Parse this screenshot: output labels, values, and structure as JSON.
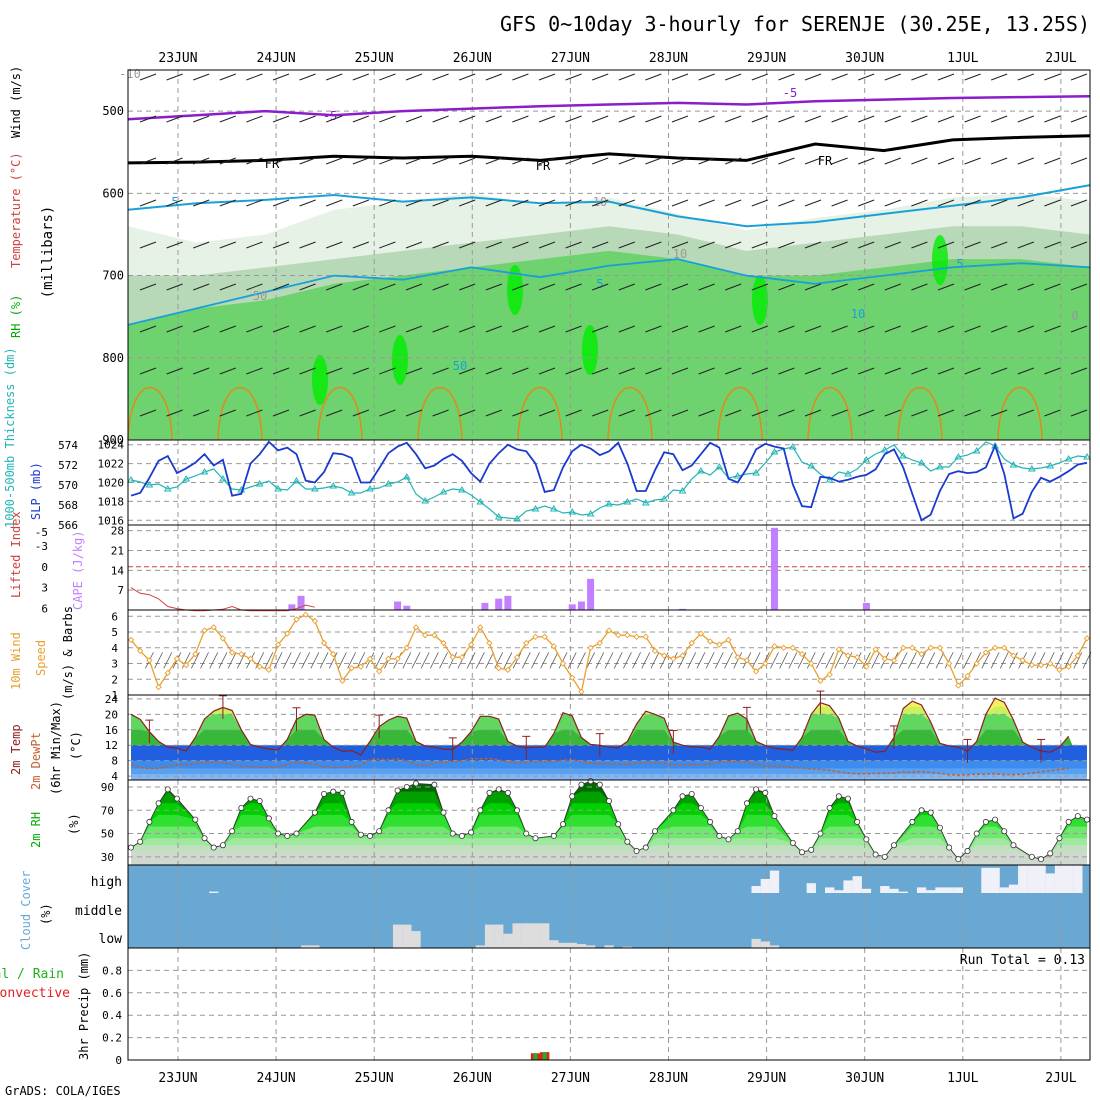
{
  "title": "GFS 0~10day 3-hourly for SERENJE (30.25E, 13.25S)",
  "footer": "GrADS: COLA/IGES",
  "dates": [
    "23JUN",
    "24JUN",
    "25JUN",
    "26JUN",
    "27JUN",
    "28JUN",
    "29JUN",
    "30JUN",
    "1JUL",
    "2JUL"
  ],
  "colors": {
    "grid": "#999999",
    "axis": "#000000",
    "rh_light": "#e6f2e6",
    "rh_mid": "#b8d9b8",
    "rh_dark": "#6ed36e",
    "rh_bright": "#00ee00",
    "purple": "#8a1ec8",
    "cyan": "#1aa0d8",
    "orange": "#e08a1a",
    "thick_cyan": "#23b5b5",
    "slp_blue": "#1a3ad0",
    "cape": "#c080ff",
    "li": "#d04040",
    "wind": "#e8a030",
    "cloud_bg": "#6aa8d4",
    "cloud_gray": "#dddddd",
    "precip_red": "#e02020",
    "precip_green": "#20b020"
  },
  "chart_data": [
    {
      "type": "area",
      "name": "upper-air",
      "ylabel_parts": [
        "RH (%)",
        "Temperature (°C)",
        "Wind (m/s)"
      ],
      "axis_label": "(millibars)",
      "y_ticks": [
        "500",
        "600",
        "700",
        "800",
        "900"
      ],
      "ylim": [
        450,
        900
      ],
      "contour_labels": [
        "-10",
        "-5",
        "-5",
        "FR",
        "FR",
        "FR",
        "5",
        "5",
        "5",
        "10",
        "10",
        "10",
        "50",
        "50",
        "0"
      ],
      "isotherm_minus5": [
        510,
        505,
        500,
        505,
        500,
        497,
        494,
        492,
        490,
        492,
        488,
        486,
        484,
        483,
        482
      ],
      "isotherm_zero": [
        563,
        562,
        560,
        555,
        557,
        555,
        560,
        552,
        557,
        560,
        540,
        548,
        535,
        532,
        530
      ],
      "isotherm_5": [
        620,
        612,
        608,
        602,
        610,
        605,
        612,
        610,
        628,
        640,
        635,
        625,
        615,
        605,
        590
      ],
      "isotherm_10": [
        760,
        740,
        720,
        700,
        705,
        690,
        702,
        688,
        680,
        700,
        710,
        700,
        690,
        685,
        690
      ]
    },
    {
      "type": "line",
      "name": "thickness-slp",
      "ylabel_left": "1000-500mb Thickness (dm)",
      "ylabel_right": "SLP (mb)",
      "thickness_ticks": [
        "574",
        "572",
        "570",
        "568",
        "566"
      ],
      "slp_ticks": [
        "1024",
        "1022",
        "1020",
        "1018",
        "1016"
      ],
      "thickness_range": [
        566,
        574.5
      ],
      "slp_range": [
        1015.5,
        1024.5
      ],
      "slp": [
        1018.6,
        1018.9,
        1020.5,
        1022.3,
        1022.8,
        1021.0,
        1021.5,
        1022.1,
        1023.0,
        1021.8,
        1022.4,
        1018.6,
        1018.8,
        1022.0,
        1023.0,
        1024.3,
        1023.4,
        1023.7,
        1023.0,
        1020.2,
        1020.0,
        1021.1,
        1023.1,
        1023.0,
        1022.6,
        1020.0,
        1020.0,
        1021.5,
        1023.1,
        1023.8,
        1024.2,
        1023.0,
        1021.5,
        1021.8,
        1022.5,
        1023.0,
        1022.3,
        1021.0,
        1020.1,
        1022.0,
        1023.1,
        1024.0,
        1023.5,
        1023.3,
        1022.0,
        1019.0,
        1019.2,
        1021.6,
        1023.3,
        1024.0,
        1023.6,
        1022.9,
        1023.3,
        1024.2,
        1022.0,
        1019.1,
        1019.1,
        1021.3,
        1023.2,
        1023.0,
        1021.3,
        1021.8,
        1023.0,
        1024.2,
        1023.7,
        1020.4,
        1020.0,
        1021.5,
        1023.5,
        1024.1,
        1023.8,
        1023.6,
        1019.8,
        1017.5,
        1017.4,
        1020.6,
        1020.5,
        1020.1,
        1020.3,
        1020.6,
        1020.8,
        1021.4,
        1023.0,
        1023.5,
        1021.6,
        1018.8,
        1016.0,
        1016.6,
        1019.1,
        1020.9,
        1021.2,
        1021.0,
        1021.1,
        1021.6,
        1023.9,
        1020.9,
        1016.2,
        1016.7,
        1019.0,
        1020.5,
        1020.1,
        1020.6,
        1021.2,
        1021.9,
        1022.1
      ],
      "thickness": [
        570.5,
        570.3,
        570.0,
        570.1,
        569.6,
        569.8,
        570.6,
        570.9,
        571.3,
        571.6,
        570.6,
        569.6,
        569.5,
        569.8,
        570.1,
        570.4,
        569.6,
        569.5,
        570.4,
        569.6,
        569.6,
        569.7,
        569.9,
        569.7,
        569.2,
        569.2,
        569.6,
        569.7,
        570.1,
        570.3,
        570.8,
        569.1,
        568.4,
        568.8,
        569.3,
        569.6,
        569.5,
        569.0,
        568.3,
        567.6,
        566.8,
        566.7,
        566.6,
        567.4,
        567.6,
        567.9,
        567.6,
        567.2,
        567.3,
        567.0,
        567.1,
        567.7,
        568.1,
        568.0,
        568.3,
        568.6,
        568.2,
        568.5,
        568.6,
        569.5,
        569.4,
        570.6,
        571.4,
        571.0,
        571.8,
        570.7,
        570.9,
        571.1,
        571.2,
        572.2,
        573.3,
        573.6,
        573.8,
        572.3,
        571.9,
        571.1,
        570.5,
        571.3,
        571.1,
        571.6,
        572.5,
        573.1,
        573.5,
        574.0,
        572.9,
        572.5,
        572.2,
        571.4,
        571.8,
        571.8,
        572.8,
        573.0,
        573.4,
        574.3,
        573.9,
        572.6,
        572.0,
        571.7,
        571.6,
        571.7,
        571.9,
        572.2,
        572.6,
        572.9,
        572.8
      ],
      "thickness_marker": "triangle",
      "slp_marker": "none"
    },
    {
      "type": "bar",
      "name": "cape-li",
      "ylabel_left": "Lifted Index",
      "ylabel_right": "CAPE (J/kg)",
      "li_ticks": [
        "-5",
        "-3",
        "0",
        "3",
        "6"
      ],
      "cape_ticks": [
        "28",
        "21",
        "14",
        "7"
      ],
      "cape_range": [
        0,
        30
      ],
      "li_range": [
        -6,
        6.2
      ],
      "li_reference_line": 0,
      "cape_bars": [
        {
          "x": 17.5,
          "v": 2
        },
        {
          "x": 18.5,
          "v": 5
        },
        {
          "x": 29,
          "v": 3
        },
        {
          "x": 30,
          "v": 1.5
        },
        {
          "x": 38.5,
          "v": 2.5
        },
        {
          "x": 40,
          "v": 4
        },
        {
          "x": 41,
          "v": 5
        },
        {
          "x": 48,
          "v": 2
        },
        {
          "x": 49,
          "v": 3
        },
        {
          "x": 50,
          "v": 11
        },
        {
          "x": 60,
          "v": 0.4
        },
        {
          "x": 70,
          "v": 29
        },
        {
          "x": 80,
          "v": 2.5
        }
      ],
      "li": [
        3.0,
        3.8,
        4.0,
        4.6,
        5.7,
        6.0,
        6.2,
        6.3,
        6.3,
        6.2,
        6.1,
        5.7,
        6.2,
        6.3,
        6.3,
        6.3,
        6.3,
        6.3,
        6.0,
        5.5,
        5.8
      ],
      "li_start": 0
    },
    {
      "type": "line",
      "name": "wind10m",
      "ylabel_parts": [
        "10m Wind",
        "Speed",
        "(m/s) & Barbs"
      ],
      "y_ticks": [
        "1",
        "2",
        "3",
        "4",
        "5",
        "6"
      ],
      "ylim": [
        1,
        6.4
      ],
      "speed": [
        4.5,
        3.8,
        3.2,
        1.5,
        2.4,
        3.3,
        2.9,
        3.6,
        5.1,
        5.3,
        4.6,
        3.7,
        3.6,
        3.3,
        2.8,
        2.6,
        4.2,
        4.9,
        5.8,
        6.1,
        5.7,
        4.3,
        3.6,
        1.9,
        2.7,
        2.8,
        3.3,
        2.5,
        3.3,
        3.3,
        4.0,
        5.3,
        4.8,
        4.8,
        4.3,
        3.4,
        3.4,
        4.2,
        5.3,
        4.3,
        2.7,
        2.6,
        3.4,
        4.3,
        4.7,
        4.7,
        4.1,
        3.0,
        2.1,
        1.2,
        4.0,
        4.3,
        5.1,
        4.8,
        4.8,
        4.7,
        4.7,
        3.8,
        3.5,
        3.3,
        3.5,
        4.3,
        4.9,
        4.4,
        4.2,
        4.5,
        3.4,
        3.2,
        2.5,
        3.0,
        4.1,
        4.0,
        4.0,
        3.6,
        3.0,
        1.9,
        2.3,
        3.9,
        3.5,
        3.4,
        2.8,
        3.9,
        3.3,
        3.2,
        4.0,
        4.0,
        3.6,
        4.0,
        4.0,
        3.0,
        1.6,
        2.2,
        3.0,
        3.7,
        4.0,
        4.0,
        3.5,
        3.2,
        2.9,
        2.9,
        3.0,
        2.6,
        2.8,
        3.5,
        4.6
      ]
    },
    {
      "type": "area",
      "name": "temp2m",
      "ylabel_parts": [
        "2m Temp",
        "2m DewPt",
        "(6hr Min/Max)",
        "(°C)"
      ],
      "y_ticks": [
        "4",
        "8",
        "12",
        "16",
        "20",
        "24"
      ],
      "ylim": [
        3,
        25
      ],
      "temp": [
        20,
        18.7,
        15.5,
        13,
        11.5,
        11.2,
        10.5,
        14,
        18.8,
        20.8,
        21.8,
        21,
        16,
        12.2,
        11.5,
        11,
        10.8,
        13.5,
        18.7,
        20,
        19.8,
        13.5,
        11.5,
        10.4,
        10.6,
        9.5,
        13,
        16.8,
        18.5,
        19.5,
        19,
        13,
        11.8,
        11.5,
        11,
        10.9,
        12.8,
        15.5,
        19.5,
        19.5,
        18.8,
        13,
        11.8,
        11.3,
        11.5,
        11.5,
        15,
        20.4,
        19.6,
        14,
        12.2,
        12,
        11.5,
        11.3,
        13,
        17.5,
        20.8,
        20,
        19,
        12.8,
        12,
        11.6,
        11.5,
        11,
        14.3,
        19.6,
        20.3,
        18.8,
        13,
        11.9,
        11.2,
        11,
        10.7,
        14,
        20,
        23,
        22.2,
        19,
        13,
        11.8,
        11,
        10.2,
        10.4,
        14,
        21.5,
        23.4,
        22.4,
        18,
        12.5,
        11.8,
        11.5,
        10.5,
        13,
        20,
        24.2,
        23.1,
        18.5,
        12.8,
        11.5,
        10.5,
        10.2,
        11.5,
        14.3
      ],
      "dewpt": [
        7,
        6.2,
        6,
        6,
        6.5,
        7,
        7,
        7.2,
        7.5,
        7.6,
        7.4,
        7.1,
        6.6,
        6.5,
        6.3,
        6.4,
        6.4,
        7,
        7.5,
        7.4,
        7.1,
        6.5,
        6.2,
        6.4,
        6.5,
        6.7,
        8.3,
        8.4,
        8.2,
        8.5,
        8,
        7,
        6.7,
        7.3,
        7.6,
        7.7,
        7.8,
        8.6,
        8.5,
        8.6,
        8.2,
        7.6,
        7.5,
        7.5,
        7.8,
        7.8,
        7.8,
        8.1,
        8.3,
        7.7,
        7.4,
        7.2,
        7.2,
        7.1,
        7.1,
        7.3,
        7.5,
        7.4,
        7.3,
        6.9,
        6.9,
        6.9,
        7,
        7.1,
        7.5,
        7.8,
        7.8,
        7.6,
        7.1,
        6.6,
        6.6,
        6.5,
        6.2,
        6.1,
        5.9,
        5.8,
        5.5,
        5.1,
        4.8,
        4.6,
        4.6,
        4.7,
        4.7,
        4.8,
        5.1,
        5,
        5.2,
        5,
        4.7,
        4.4,
        4.3,
        4.4,
        4.5,
        4.5,
        4.6,
        4.4,
        4.4,
        4.5,
        4.8,
        5.1,
        5.4,
        5.7,
        6
      ],
      "minmax_bars": [
        2,
        10,
        18,
        27,
        35,
        43,
        51,
        59,
        67,
        75,
        83,
        91,
        99
      ]
    },
    {
      "type": "area",
      "name": "rh2m",
      "ylabel_parts": [
        "2m RH",
        "(%)"
      ],
      "y_ticks": [
        "30",
        "50",
        "70",
        "90"
      ],
      "ylim": [
        23,
        96
      ],
      "rh": [
        38,
        43,
        60,
        76,
        88,
        80,
        62,
        46,
        38,
        40,
        52,
        72,
        80,
        78,
        63,
        50,
        48,
        50,
        68,
        84,
        86,
        85,
        60,
        49,
        48,
        52,
        70,
        87,
        90,
        93,
        92,
        68,
        50,
        48,
        51,
        70,
        85,
        88,
        85,
        70,
        50,
        46,
        48,
        58,
        82,
        92,
        95,
        92,
        78,
        58,
        43,
        35,
        38,
        52,
        70,
        82,
        84,
        72,
        60,
        48,
        45,
        52,
        76,
        88,
        85,
        65,
        42,
        34,
        36,
        50,
        72,
        82,
        80,
        60,
        45,
        32,
        30,
        40,
        60,
        70,
        68,
        55,
        38,
        28,
        35,
        50,
        60,
        62,
        52,
        40,
        30,
        28,
        33,
        46,
        60,
        65,
        62
      ]
    },
    {
      "type": "bar",
      "name": "cloud-cover",
      "ylabel_parts": [
        "Cloud Cover",
        "(%)"
      ],
      "levels": [
        "high",
        "middle",
        "low"
      ],
      "high_blocks": [
        {
          "x": 9,
          "v": 5
        },
        {
          "x": 68,
          "v": 25
        },
        {
          "x": 69,
          "v": 50
        },
        {
          "x": 70,
          "v": 80
        },
        {
          "x": 74,
          "v": 35
        },
        {
          "x": 76,
          "v": 20
        },
        {
          "x": 77,
          "v": 10
        },
        {
          "x": 78,
          "v": 45
        },
        {
          "x": 79,
          "v": 60
        },
        {
          "x": 80,
          "v": 15
        },
        {
          "x": 82,
          "v": 25
        },
        {
          "x": 83,
          "v": 15
        },
        {
          "x": 84,
          "v": 5
        },
        {
          "x": 86,
          "v": 20
        },
        {
          "x": 87,
          "v": 10
        },
        {
          "x": 88,
          "v": 20
        },
        {
          "x": 89,
          "v": 20
        },
        {
          "x": 90,
          "v": 20
        },
        {
          "x": 93,
          "v": 90
        },
        {
          "x": 94,
          "v": 90
        },
        {
          "x": 95,
          "v": 20
        },
        {
          "x": 96,
          "v": 30
        },
        {
          "x": 97,
          "v": 100
        },
        {
          "x": 98,
          "v": 100
        },
        {
          "x": 99,
          "v": 100
        },
        {
          "x": 100,
          "v": 70
        },
        {
          "x": 101,
          "v": 100
        },
        {
          "x": 102,
          "v": 100
        },
        {
          "x": 103,
          "v": 100
        }
      ],
      "low_blocks": [
        {
          "x": 19,
          "v": 10
        },
        {
          "x": 20,
          "v": 10
        },
        {
          "x": 29,
          "v": 90
        },
        {
          "x": 30,
          "v": 90
        },
        {
          "x": 31,
          "v": 65
        },
        {
          "x": 38,
          "v": 10
        },
        {
          "x": 39,
          "v": 90
        },
        {
          "x": 40,
          "v": 90
        },
        {
          "x": 41,
          "v": 55
        },
        {
          "x": 42,
          "v": 95
        },
        {
          "x": 43,
          "v": 95
        },
        {
          "x": 44,
          "v": 95
        },
        {
          "x": 45,
          "v": 95
        },
        {
          "x": 46,
          "v": 30
        },
        {
          "x": 47,
          "v": 20
        },
        {
          "x": 48,
          "v": 20
        },
        {
          "x": 49,
          "v": 15
        },
        {
          "x": 50,
          "v": 10
        },
        {
          "x": 52,
          "v": 10
        },
        {
          "x": 54,
          "v": 5
        },
        {
          "x": 68,
          "v": 35
        },
        {
          "x": 69,
          "v": 25
        },
        {
          "x": 70,
          "v": 10
        }
      ]
    },
    {
      "type": "bar",
      "name": "precip",
      "ylabel_parts": [
        "Total / Rain",
        "Convective",
        "3hr Precip (mm)"
      ],
      "y_ticks": [
        "0",
        "0.2",
        "0.4",
        "0.6",
        "0.8"
      ],
      "ylim": [
        0,
        1.0
      ],
      "run_total": "Run Total = 0.13",
      "bars": [
        {
          "x": 44,
          "v": 0.06
        },
        {
          "x": 45,
          "v": 0.07
        }
      ]
    }
  ]
}
